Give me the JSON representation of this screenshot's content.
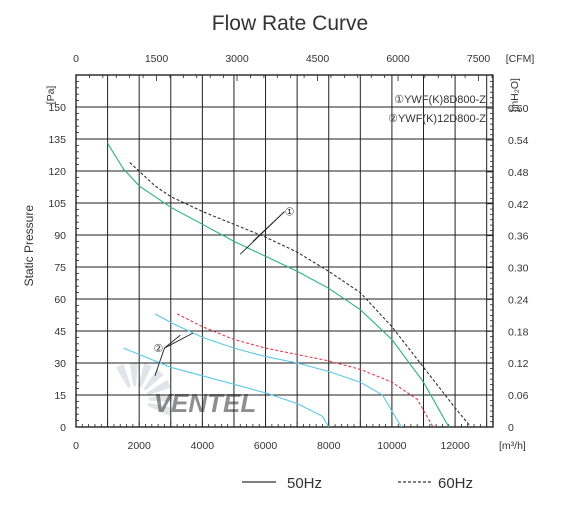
{
  "chart_data": {
    "type": "line",
    "title": "Flow Rate Curve",
    "ylabel": "Static Pressure",
    "units": {
      "left": "[Pa]",
      "right": "[inH₂O]",
      "bottom": "[m³/h]",
      "top": "[CFM]"
    },
    "xlim": [
      0,
      13200
    ],
    "ylim": [
      0,
      165
    ],
    "x_ticks": [
      "0",
      "2000",
      "4000",
      "6000",
      "8000",
      "10000",
      "12000"
    ],
    "y_ticks": [
      "0",
      "15",
      "30",
      "45",
      "60",
      "75",
      "90",
      "105",
      "120",
      "135",
      "150"
    ],
    "top_ticks": [
      {
        "value": 0,
        "label": "0"
      },
      {
        "value": 1500,
        "label": "1500"
      },
      {
        "value": 3000,
        "label": "3000"
      },
      {
        "value": 4500,
        "label": "4500"
      },
      {
        "value": 6000,
        "label": "6000"
      },
      {
        "value": 7500,
        "label": "7500"
      }
    ],
    "right_ticks": [
      {
        "value": 0,
        "label": "0"
      },
      {
        "value": 0.06,
        "label": "0.06"
      },
      {
        "value": 0.12,
        "label": "0.12"
      },
      {
        "value": 0.18,
        "label": "0.18"
      },
      {
        "value": 0.24,
        "label": "0.24"
      },
      {
        "value": 0.3,
        "label": "0.30"
      },
      {
        "value": 0.36,
        "label": "0.36"
      },
      {
        "value": 0.42,
        "label": "0.42"
      },
      {
        "value": 0.48,
        "label": "0.48"
      },
      {
        "value": 0.54,
        "label": "0.54"
      },
      {
        "value": 0.6,
        "label": "0.60"
      }
    ],
    "grid": true,
    "legend": {
      "placement": "top-right",
      "entries": [
        "①YWF(K)8D800-Z",
        "②YWF(K)12D800-Z"
      ]
    },
    "callouts": [
      "①",
      "②"
    ],
    "line_styles": [
      {
        "label": "50Hz",
        "dash": "solid"
      },
      {
        "label": "60Hz",
        "dash": "dashed"
      }
    ],
    "watermark": "VENTEL",
    "series": [
      {
        "model": "1",
        "freq": "50Hz",
        "color": "#2db37a",
        "dash": "solid",
        "points": [
          [
            1000,
            133
          ],
          [
            1500,
            121
          ],
          [
            2000,
            113
          ],
          [
            3000,
            103
          ],
          [
            4000,
            95
          ],
          [
            5000,
            87
          ],
          [
            6000,
            80
          ],
          [
            7000,
            73
          ],
          [
            8000,
            65
          ],
          [
            9000,
            55
          ],
          [
            10000,
            41
          ],
          [
            11000,
            21
          ],
          [
            11800,
            0
          ]
        ]
      },
      {
        "model": "1",
        "freq": "60Hz",
        "color": "#333333",
        "dash": "dashed",
        "points": [
          [
            1700,
            124
          ],
          [
            2500,
            113
          ],
          [
            3000,
            108
          ],
          [
            4000,
            101
          ],
          [
            5000,
            95
          ],
          [
            6000,
            89
          ],
          [
            7000,
            82
          ],
          [
            8000,
            73
          ],
          [
            9000,
            63
          ],
          [
            10000,
            47
          ],
          [
            11000,
            28
          ],
          [
            12000,
            9
          ],
          [
            12500,
            0
          ]
        ]
      },
      {
        "model": "2",
        "freq": "50Hz",
        "color": "#5bc8e8",
        "dash": "solid",
        "points": [
          [
            1500,
            37
          ],
          [
            2000,
            34
          ],
          [
            3000,
            28
          ],
          [
            4000,
            24
          ],
          [
            5000,
            20
          ],
          [
            6000,
            16
          ],
          [
            7000,
            11
          ],
          [
            7800,
            5
          ],
          [
            8000,
            0
          ]
        ]
      },
      {
        "model": "2",
        "freq": "50Hz",
        "color": "#5bc8e8",
        "dash": "solid",
        "points": [
          [
            2500,
            53
          ],
          [
            3000,
            49
          ],
          [
            4000,
            42
          ],
          [
            5000,
            37
          ],
          [
            6000,
            33
          ],
          [
            7000,
            30
          ],
          [
            8000,
            26
          ],
          [
            9000,
            21
          ],
          [
            9700,
            15
          ],
          [
            10300,
            0
          ]
        ]
      },
      {
        "model": "2",
        "freq": "60Hz",
        "color": "#e8394a",
        "dash": "dashed",
        "points": [
          [
            3200,
            53
          ],
          [
            4000,
            47
          ],
          [
            5000,
            41
          ],
          [
            6000,
            37
          ],
          [
            7000,
            34
          ],
          [
            8000,
            31
          ],
          [
            9000,
            27
          ],
          [
            10000,
            21
          ],
          [
            10800,
            13
          ],
          [
            11300,
            0
          ]
        ]
      }
    ]
  }
}
